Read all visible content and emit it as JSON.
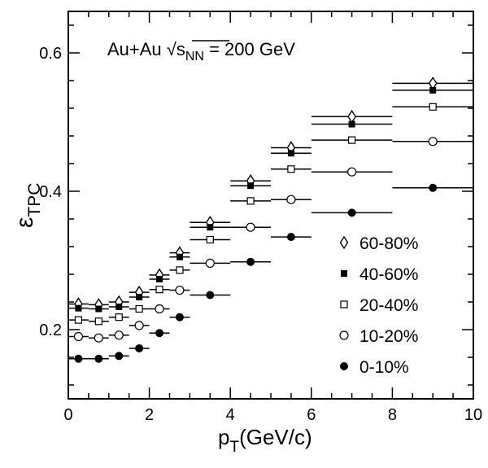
{
  "chart_data": {
    "type": "scatter",
    "annotation": {
      "prefix": "Au+Au ",
      "sqrt_symbol": "√",
      "s": "s",
      "sub": "NN",
      "suffix": " = 200 GeV"
    },
    "xlabel": {
      "main": "p",
      "sub": "T",
      "rest": "(GeV/c)"
    },
    "ylabel": {
      "main": "ε",
      "sub": "TPC"
    },
    "xlim": [
      0,
      10
    ],
    "ylim": [
      0.1,
      0.66
    ],
    "xticks": [
      0,
      2,
      4,
      6,
      8,
      10
    ],
    "xtick_labels": [
      "0",
      "2",
      "4",
      "6",
      "8",
      "10"
    ],
    "yticks": [
      0.2,
      0.4,
      0.6
    ],
    "ytick_labels": [
      "0.2",
      "0.4",
      "0.6"
    ],
    "legend_position": "right",
    "x_bins": [
      [
        0,
        0.5
      ],
      [
        0.5,
        1
      ],
      [
        1,
        1.5
      ],
      [
        1.5,
        2
      ],
      [
        2,
        2.5
      ],
      [
        2.5,
        3
      ],
      [
        3,
        4
      ],
      [
        4,
        5
      ],
      [
        5,
        6
      ],
      [
        6,
        8
      ],
      [
        8,
        10
      ]
    ],
    "x": [
      0.25,
      0.75,
      1.25,
      1.75,
      2.25,
      2.75,
      3.5,
      4.5,
      5.5,
      7,
      9
    ],
    "series": [
      {
        "name": "60-80%",
        "marker": "open-diamond",
        "values": [
          0.237,
          0.236,
          0.24,
          0.254,
          0.279,
          0.311,
          0.355,
          0.415,
          0.463,
          0.508,
          0.556
        ]
      },
      {
        "name": "40-60%",
        "marker": "filled-square",
        "values": [
          0.231,
          0.23,
          0.233,
          0.247,
          0.273,
          0.305,
          0.348,
          0.408,
          0.455,
          0.497,
          0.546
        ]
      },
      {
        "name": "20-40%",
        "marker": "open-square",
        "values": [
          0.214,
          0.212,
          0.218,
          0.23,
          0.258,
          0.286,
          0.33,
          0.386,
          0.432,
          0.474,
          0.522
        ]
      },
      {
        "name": "10-20%",
        "marker": "open-circle",
        "values": [
          0.19,
          0.188,
          0.192,
          0.206,
          0.23,
          0.257,
          0.296,
          0.348,
          0.388,
          0.428,
          0.472
        ]
      },
      {
        "name": "0-10%",
        "marker": "filled-circle",
        "values": [
          0.158,
          0.158,
          0.162,
          0.173,
          0.195,
          0.218,
          0.25,
          0.298,
          0.334,
          0.369,
          0.405
        ]
      }
    ]
  }
}
